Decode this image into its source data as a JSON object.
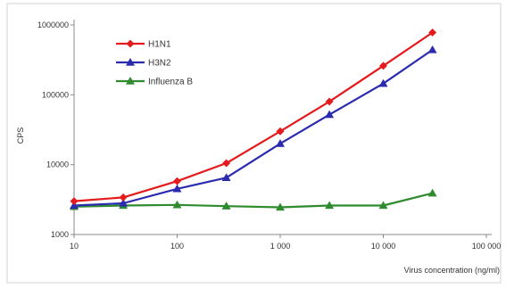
{
  "chart_data": {
    "type": "line",
    "xlabel": "Virus concentration (ng/ml)",
    "ylabel": "CPS",
    "x_scale": "log",
    "y_scale": "log",
    "xlim": [
      10,
      100000
    ],
    "ylim": [
      1000,
      1000000
    ],
    "x_ticks": [
      10,
      100,
      1000,
      10000,
      100000
    ],
    "x_tick_labels": [
      "10",
      "100",
      "1 000",
      "10 000",
      "100 000"
    ],
    "y_ticks": [
      1000,
      10000,
      100000,
      1000000
    ],
    "y_tick_labels": [
      "1000",
      "10000",
      "100000",
      "1000000"
    ],
    "grid": false,
    "legend_position": "top-left",
    "series": [
      {
        "name": "H1N1",
        "color": "#e41a1c",
        "marker": "diamond",
        "x": [
          10,
          30,
          100,
          300,
          1000,
          3000,
          10000,
          30000
        ],
        "y": [
          3000,
          3400,
          5800,
          10500,
          30000,
          80000,
          260000,
          780000
        ]
      },
      {
        "name": "H3N2",
        "color": "#2b2bb0",
        "marker": "triangle",
        "x": [
          10,
          30,
          100,
          300,
          1000,
          3000,
          10000,
          30000
        ],
        "y": [
          2600,
          2800,
          4500,
          6500,
          20000,
          52000,
          145000,
          440000
        ]
      },
      {
        "name": "Influenza B",
        "color": "#2e8b2e",
        "marker": "triangle",
        "x": [
          10,
          30,
          100,
          300,
          1000,
          3000,
          10000,
          30000
        ],
        "y": [
          2500,
          2600,
          2650,
          2550,
          2450,
          2600,
          2600,
          3900
        ]
      }
    ]
  }
}
